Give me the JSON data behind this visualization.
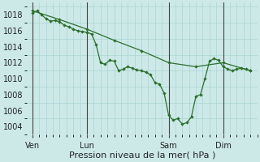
{
  "background_color": "#cce9e8",
  "grid_color": "#aad4d3",
  "line_color": "#2d6e2d",
  "ylim": [
    1003.5,
    1019.5
  ],
  "xlabel": "Pression niveau de la mer( hPa )",
  "ylabel_ticks": [
    1004,
    1006,
    1008,
    1010,
    1012,
    1014,
    1016,
    1018
  ],
  "day_positions": [
    0,
    48,
    120,
    168
  ],
  "day_labels": [
    "Ven",
    "Lun",
    "Sam",
    "Dim"
  ],
  "vlines_x": [
    0,
    48,
    120,
    168
  ],
  "series1_x": [
    0,
    4,
    8,
    12,
    16,
    20,
    24,
    28,
    32,
    36,
    40,
    44,
    48,
    52,
    56,
    60,
    64,
    68,
    72,
    76,
    80,
    84,
    88,
    92,
    96,
    100,
    104,
    108,
    112,
    116,
    120,
    124,
    128,
    132,
    136,
    140,
    144,
    148,
    152,
    156,
    160,
    164,
    168,
    172,
    176,
    180,
    184,
    188,
    192
  ],
  "series1_y": [
    1018.2,
    1018.5,
    1018.0,
    1017.5,
    1017.2,
    1017.3,
    1017.1,
    1016.7,
    1016.5,
    1016.2,
    1016.0,
    1015.9,
    1015.8,
    1015.6,
    1014.3,
    1012.0,
    1011.8,
    1012.3,
    1012.2,
    1011.0,
    1011.2,
    1011.5,
    1011.3,
    1011.1,
    1011.0,
    1010.8,
    1010.5,
    1009.5,
    1009.3,
    1008.2,
    1005.4,
    1004.8,
    1005.0,
    1004.3,
    1004.5,
    1005.2,
    1007.8,
    1008.0,
    1010.0,
    1012.2,
    1012.5,
    1012.3,
    1011.5,
    1011.2,
    1011.0,
    1011.2,
    1011.3,
    1011.2,
    1011.0
  ],
  "series2_x": [
    0,
    24,
    48,
    72,
    96,
    120,
    144,
    168,
    192
  ],
  "series2_y": [
    1018.5,
    1017.4,
    1016.2,
    1014.8,
    1013.5,
    1012.0,
    1011.5,
    1012.0,
    1011.0
  ],
  "tick_fontsize": 7,
  "xlabel_fontsize": 8,
  "xlim": [
    -5,
    197
  ]
}
